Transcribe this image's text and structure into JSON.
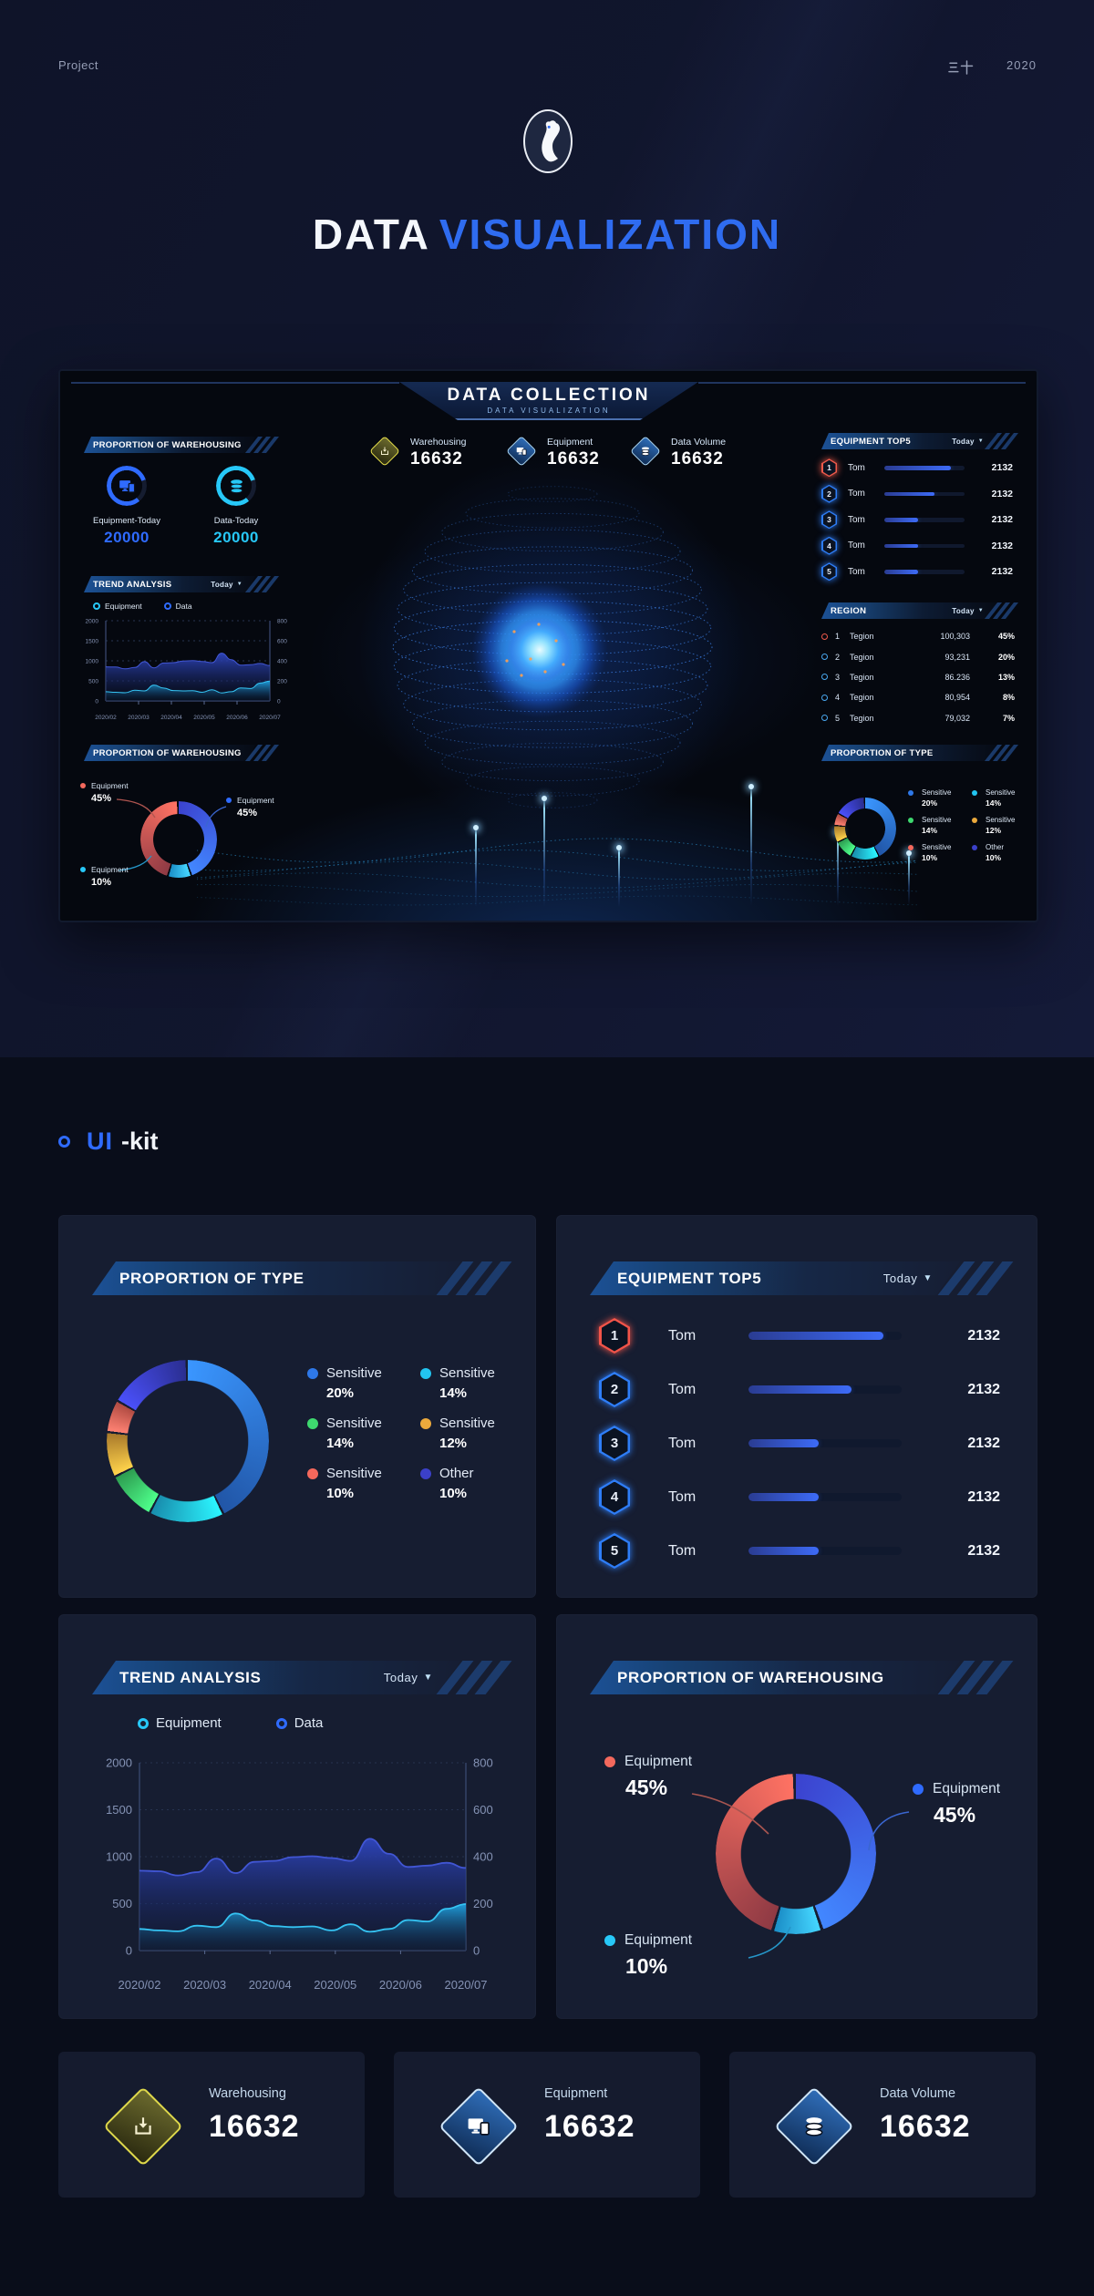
{
  "header": {
    "project": "Project",
    "author": "三十",
    "year": "2020"
  },
  "title": {
    "white": "DATA",
    "blue": "VISUALIZATION"
  },
  "uikit": {
    "blue": "UI",
    "white": "-kit"
  },
  "colors": {
    "accent_blue": "#2f6bff",
    "accent_cyan": "#27c8f8",
    "accent_red": "#f4695d",
    "accent_green": "#3ed96f",
    "accent_orange": "#eba93c",
    "accent_indigo": "#3b40c8",
    "accent_yellow": "#e8e04a",
    "card_bg": "#161d31",
    "dash_bg": "#05080f"
  },
  "dashboard": {
    "header": {
      "title": "DATA COLLECTION",
      "subtitle": "DATA VISUALIZATION"
    },
    "kpis": [
      {
        "label": "Warehousing",
        "value": "16632",
        "icon": "inbox-icon",
        "variant": "yellow"
      },
      {
        "label": "Equipment",
        "value": "16632",
        "icon": "monitor-icon",
        "variant": "blue"
      },
      {
        "label": "Data Volume",
        "value": "16632",
        "icon": "database-icon",
        "variant": "blue"
      }
    ],
    "warehousing_panel": {
      "title": "PROPORTION OF WAREHOUSING",
      "gauges": [
        {
          "label": "Equipment-Today",
          "value": "20000",
          "color": "#2f6bff",
          "icon": "monitor-icon"
        },
        {
          "label": "Data-Today",
          "value": "20000",
          "color": "#27c8f8",
          "icon": "database-icon"
        }
      ]
    },
    "trend_panel": {
      "title": "TREND ANALYSIS",
      "filter": "Today",
      "legend": [
        {
          "label": "Equipment",
          "color": "#27c8f8"
        },
        {
          "label": "Data",
          "color": "#2f6bff"
        }
      ]
    },
    "wh_donut_panel": {
      "title": "PROPORTION OF WAREHOUSING",
      "legend": [
        {
          "label": "Equipment",
          "pct": "45%",
          "color": "#f4695d"
        },
        {
          "label": "Equipment",
          "pct": "45%",
          "color": "#2f6bff"
        },
        {
          "label": "Equipment",
          "pct": "10%",
          "color": "#27c8f8"
        }
      ]
    },
    "top5_panel": {
      "title": "EQUIPMENT TOP5",
      "filter": "Today",
      "rows": [
        {
          "rank": "1",
          "name": "Tom",
          "value": "2132",
          "fill": 83,
          "accent": "#f05a4b"
        },
        {
          "rank": "2",
          "name": "Tom",
          "value": "2132",
          "fill": 62,
          "accent": "#2e7df7"
        },
        {
          "rank": "3",
          "name": "Tom",
          "value": "2132",
          "fill": 42,
          "accent": "#2e7df7"
        },
        {
          "rank": "4",
          "name": "Tom",
          "value": "2132",
          "fill": 42,
          "accent": "#2e7df7"
        },
        {
          "rank": "5",
          "name": "Tom",
          "value": "2132",
          "fill": 42,
          "accent": "#2e7df7"
        }
      ]
    },
    "region_panel": {
      "title": "REGION",
      "filter": "Today",
      "rows": [
        {
          "rank": "1",
          "name": "Tegion",
          "value": "100,303",
          "pct": "45%",
          "accent": "#f05a4b"
        },
        {
          "rank": "2",
          "name": "Tegion",
          "value": "93,231",
          "pct": "20%",
          "accent": "#4aa8f0"
        },
        {
          "rank": "3",
          "name": "Tegion",
          "value": "86.236",
          "pct": "13%",
          "accent": "#4aa8f0"
        },
        {
          "rank": "4",
          "name": "Tegion",
          "value": "80,954",
          "pct": "8%",
          "accent": "#4aa8f0"
        },
        {
          "rank": "5",
          "name": "Tegion",
          "value": "79,032",
          "pct": "7%",
          "accent": "#4aa8f0"
        }
      ]
    },
    "type_panel": {
      "title": "PROPORTION OF TYPE",
      "legend": [
        {
          "label": "Sensitive",
          "pct": "20%",
          "color": "#2e78e8"
        },
        {
          "label": "Sensitive",
          "pct": "14%",
          "color": "#22c4f0"
        },
        {
          "label": "Sensitive",
          "pct": "14%",
          "color": "#3ed96f"
        },
        {
          "label": "Sensitive",
          "pct": "12%",
          "color": "#eba93c"
        },
        {
          "label": "Sensitive",
          "pct": "10%",
          "color": "#f4685c"
        },
        {
          "label": "Other",
          "pct": "10%",
          "color": "#3b40c8"
        }
      ]
    }
  },
  "cards": {
    "type": {
      "title": "PROPORTION OF TYPE",
      "legend": [
        {
          "label": "Sensitive",
          "pct": "20%",
          "color": "#2e78e8"
        },
        {
          "label": "Sensitive",
          "pct": "14%",
          "color": "#22c4f0"
        },
        {
          "label": "Sensitive",
          "pct": "14%",
          "color": "#3ed96f"
        },
        {
          "label": "Sensitive",
          "pct": "12%",
          "color": "#eba93c"
        },
        {
          "label": "Sensitive",
          "pct": "10%",
          "color": "#f4685c"
        },
        {
          "label": "Other",
          "pct": "10%",
          "color": "#3b40c8"
        }
      ]
    },
    "top5": {
      "title": "EQUIPMENT TOP5",
      "filter": "Today",
      "rows": [
        {
          "rank": "1",
          "name": "Tom",
          "value": "2132",
          "fill": 88,
          "accent": "#f25449"
        },
        {
          "rank": "2",
          "name": "Tom",
          "value": "2132",
          "fill": 67,
          "accent": "#2e7df7"
        },
        {
          "rank": "3",
          "name": "Tom",
          "value": "2132",
          "fill": 46,
          "accent": "#2e7df7"
        },
        {
          "rank": "4",
          "name": "Tom",
          "value": "2132",
          "fill": 46,
          "accent": "#2e7df7"
        },
        {
          "rank": "5",
          "name": "Tom",
          "value": "2132",
          "fill": 46,
          "accent": "#2e7df7"
        }
      ]
    },
    "trend": {
      "title": "TREND ANALYSIS",
      "filter": "Today",
      "legend": [
        {
          "label": "Equipment",
          "color": "#27c8f8"
        },
        {
          "label": "Data",
          "color": "#2f6bff"
        }
      ]
    },
    "warehousing": {
      "title": "PROPORTION OF WAREHOUSING",
      "legend": [
        {
          "label": "Equipment",
          "pct": "45%",
          "color": "#f4695d"
        },
        {
          "label": "Equipment",
          "pct": "45%",
          "color": "#2f6bff"
        },
        {
          "label": "Equipment",
          "pct": "10%",
          "color": "#27c8f8"
        }
      ]
    }
  },
  "stats": [
    {
      "label": "Warehousing",
      "value": "16632",
      "icon": "inbox-icon",
      "variant": "yellow"
    },
    {
      "label": "Equipment",
      "value": "16632",
      "icon": "monitor-icon",
      "variant": "blue"
    },
    {
      "label": "Data Volume",
      "value": "16632",
      "icon": "database-icon",
      "variant": "blue"
    }
  ],
  "chart_data": [
    {
      "id": "proportion-of-type",
      "type": "pie",
      "title": "PROPORTION OF TYPE",
      "labels": [
        "Sensitive",
        "Sensitive",
        "Sensitive",
        "Sensitive",
        "Sensitive",
        "Other"
      ],
      "values": [
        20,
        14,
        14,
        12,
        10,
        10
      ],
      "colors": [
        "#2e78e8",
        "#22c4f0",
        "#3ed96f",
        "#eba93c",
        "#f4685c",
        "#3b40c8"
      ],
      "display_weights": [
        43,
        15,
        10,
        9,
        6.5,
        16.5
      ],
      "hole": 0.74,
      "legend_position": "right"
    },
    {
      "id": "equipment-top5",
      "type": "bar",
      "title": "EQUIPMENT TOP5",
      "filter": "Today",
      "categories": [
        "Tom",
        "Tom",
        "Tom",
        "Tom",
        "Tom"
      ],
      "values": [
        2132,
        2132,
        2132,
        2132,
        2132
      ],
      "bar_fill_pct": [
        88,
        67,
        46,
        46,
        46
      ]
    },
    {
      "id": "trend-analysis",
      "type": "area",
      "title": "TREND ANALYSIS",
      "filter": "Today",
      "x_labels": [
        "2020/02",
        "2020/03",
        "2020/04",
        "2020/05",
        "2020/06",
        "2020/07"
      ],
      "y_left": {
        "min": 0,
        "max": 2000,
        "ticks": [
          0,
          500,
          1000,
          1500,
          2000
        ]
      },
      "y_right": {
        "min": 0,
        "max": 800,
        "ticks": [
          0,
          200,
          400,
          600,
          800
        ]
      },
      "grid": "dashed",
      "series": [
        {
          "name": "Data",
          "axis": "left",
          "color": "#4156d4",
          "values": [
            850,
            845,
            800,
            835,
            980,
            825,
            945,
            955,
            995,
            1005,
            985,
            955,
            1190,
            1030,
            890,
            905,
            935,
            880
          ]
        },
        {
          "name": "Equipment",
          "axis": "right",
          "color": "#35c3f2",
          "values": [
            92,
            86,
            82,
            106,
            100,
            158,
            128,
            104,
            100,
            103,
            86,
            112,
            80,
            92,
            130,
            124,
            178,
            198
          ]
        }
      ]
    },
    {
      "id": "proportion-of-warehousing",
      "type": "pie",
      "title": "PROPORTION OF WAREHOUSING",
      "labels": [
        "Equipment",
        "Equipment",
        "Equipment"
      ],
      "values": [
        45,
        10,
        45
      ],
      "colors": [
        "#2f6bff",
        "#27c8f8",
        "#f4695d"
      ],
      "hole": 0.68,
      "clockwise_from_top_order": [
        "Equipment 45% (blue)",
        "Equipment 10% (cyan)",
        "Equipment 45% (red)"
      ]
    },
    {
      "id": "region",
      "type": "table",
      "title": "REGION",
      "filter": "Today",
      "columns": [
        "rank",
        "name",
        "value",
        "share"
      ],
      "rows": [
        [
          "1",
          "Tegion",
          "100,303",
          "45%"
        ],
        [
          "2",
          "Tegion",
          "93,231",
          "20%"
        ],
        [
          "3",
          "Tegion",
          "86.236",
          "13%"
        ],
        [
          "4",
          "Tegion",
          "80,954",
          "8%"
        ],
        [
          "5",
          "Tegion",
          "79,032",
          "7%"
        ]
      ]
    }
  ]
}
